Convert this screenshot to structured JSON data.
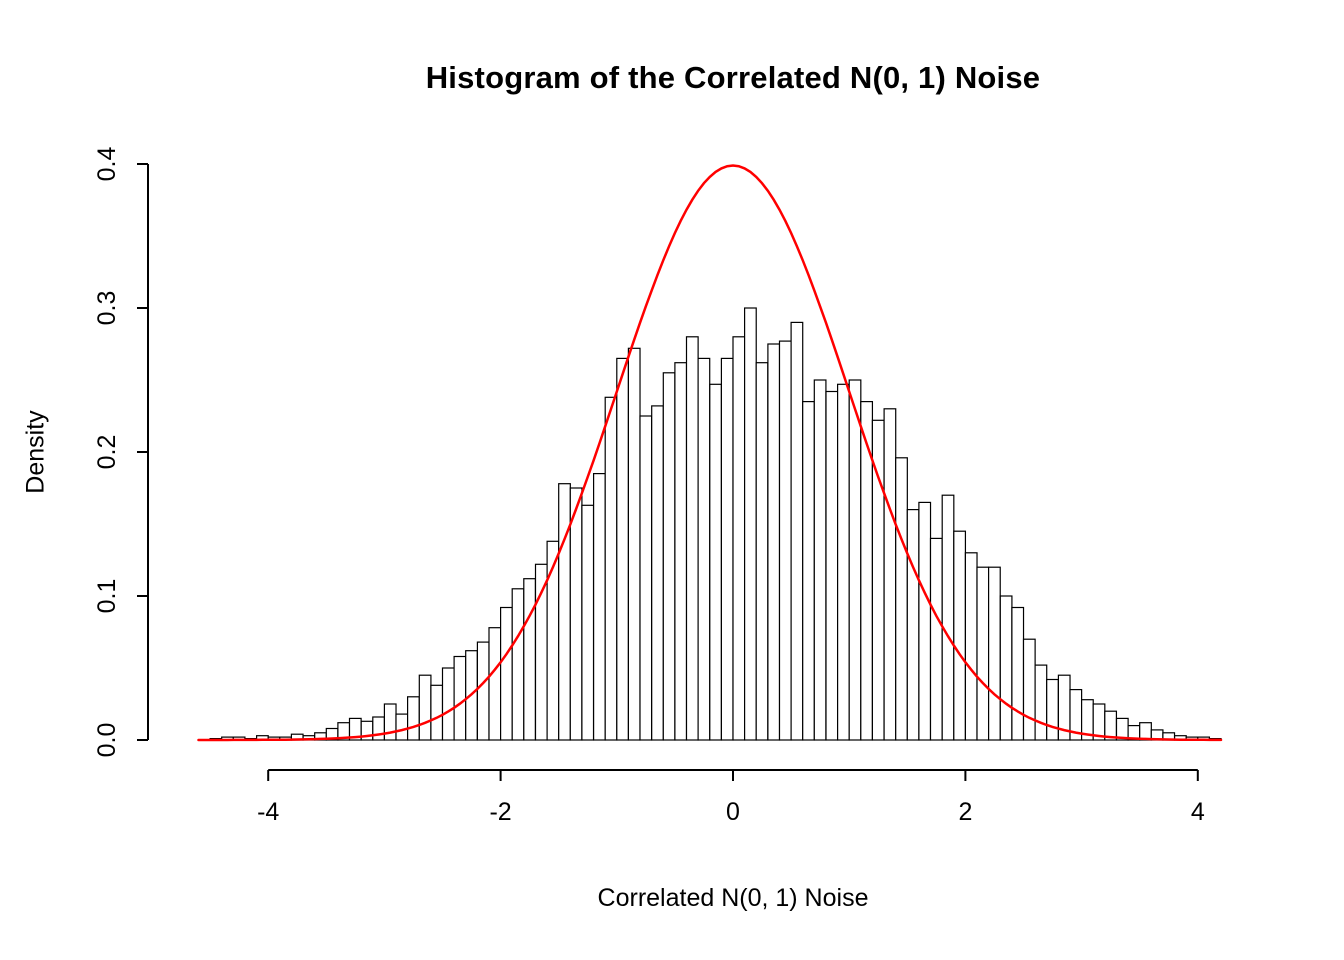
{
  "chart_data": {
    "type": "bar",
    "subtype": "histogram-with-density-overlay",
    "title": "Histogram of the Correlated N(0, 1) Noise",
    "xlabel": "Correlated N(0, 1) Noise",
    "ylabel": "Density",
    "xlim": [
      -4.7,
      4.4
    ],
    "ylim": [
      0,
      0.4
    ],
    "grid": false,
    "x_ticks": {
      "values": [
        -4,
        -2,
        0,
        2,
        4
      ],
      "labels": [
        "-4",
        "-2",
        "0",
        "2",
        "4"
      ]
    },
    "y_ticks": {
      "values": [
        0,
        0.1,
        0.2,
        0.3,
        0.4
      ],
      "labels": [
        "0.0",
        "0.1",
        "0.2",
        "0.3",
        "0.4"
      ]
    },
    "bar_fill": "#FFFFFF",
    "bar_stroke": "#000000",
    "axis_color": "#000000",
    "bins": {
      "start": -4.5,
      "width": 0.1,
      "densities": [
        0.001,
        0.002,
        0.002,
        0.001,
        0.003,
        0.002,
        0.002,
        0.004,
        0.003,
        0.005,
        0.008,
        0.012,
        0.015,
        0.013,
        0.016,
        0.025,
        0.018,
        0.03,
        0.045,
        0.038,
        0.05,
        0.058,
        0.062,
        0.068,
        0.078,
        0.092,
        0.105,
        0.112,
        0.122,
        0.138,
        0.178,
        0.175,
        0.163,
        0.185,
        0.238,
        0.265,
        0.272,
        0.225,
        0.232,
        0.255,
        0.262,
        0.28,
        0.265,
        0.247,
        0.265,
        0.28,
        0.3,
        0.262,
        0.275,
        0.277,
        0.29,
        0.235,
        0.25,
        0.242,
        0.247,
        0.25,
        0.235,
        0.222,
        0.23,
        0.196,
        0.16,
        0.165,
        0.14,
        0.17,
        0.145,
        0.13,
        0.12,
        0.12,
        0.1,
        0.092,
        0.07,
        0.052,
        0.042,
        0.045,
        0.035,
        0.028,
        0.025,
        0.02,
        0.015,
        0.01,
        0.012,
        0.007,
        0.005,
        0.003,
        0.002,
        0.002,
        0.001
      ]
    },
    "overlay_curve": {
      "name": "standard-normal-density",
      "distribution": "normal",
      "mean": 0,
      "sd": 1,
      "peak_density": 0.3989,
      "color": "#FF0000",
      "x_range": [
        -4.6,
        4.2
      ]
    }
  }
}
